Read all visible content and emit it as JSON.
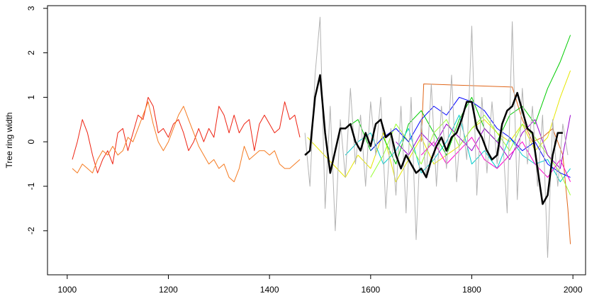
{
  "chart_data": {
    "type": "line",
    "y_label": "Tree ring width",
    "xlim": [
      961,
      2025
    ],
    "ylim": [
      -2.99,
      3.06
    ],
    "xticks": [
      1000,
      1200,
      1400,
      1600,
      1800,
      2000
    ],
    "yticks": [
      -2,
      -1,
      0,
      1,
      2,
      3
    ],
    "series": [
      {
        "color": "#ee2211",
        "width": 1,
        "x": [
          1010,
          1020,
          1030,
          1040,
          1050,
          1060,
          1070,
          1080,
          1090,
          1100,
          1110,
          1120,
          1130,
          1140,
          1150,
          1160,
          1170,
          1180,
          1190,
          1200,
          1210,
          1220,
          1230,
          1240,
          1250,
          1260,
          1270,
          1280,
          1290,
          1300,
          1310,
          1320,
          1330,
          1340,
          1350,
          1360,
          1370,
          1380,
          1390,
          1400,
          1410,
          1420,
          1430,
          1440,
          1450,
          1460
        ],
        "values": [
          -0.4,
          0,
          0.5,
          0.2,
          -0.3,
          -0.7,
          -0.4,
          -0.2,
          -0.5,
          0.2,
          0.3,
          -0.2,
          0.2,
          0.6,
          0.5,
          1.0,
          0.8,
          0.2,
          0.3,
          0.1,
          0.4,
          0.5,
          0.2,
          -0.2,
          0,
          0.3,
          0,
          0.3,
          0.1,
          0.8,
          0.6,
          0.2,
          0.6,
          0.2,
          0.4,
          0.5,
          -0.2,
          0.4,
          0.6,
          0.4,
          0.2,
          0.3,
          0.9,
          0.5,
          0.6,
          0.1
        ]
      },
      {
        "color": "#f57a20",
        "width": 1,
        "x": [
          1010,
          1020,
          1030,
          1040,
          1050,
          1060,
          1070,
          1080,
          1090,
          1100,
          1110,
          1120,
          1130,
          1140,
          1150,
          1160,
          1170,
          1180,
          1190,
          1200,
          1210,
          1220,
          1230,
          1240,
          1250,
          1260,
          1270,
          1280,
          1290,
          1300,
          1310,
          1320,
          1330,
          1340,
          1350,
          1360,
          1370,
          1380,
          1390,
          1400,
          1410,
          1420,
          1430,
          1440,
          1450,
          1460
        ],
        "values": [
          -0.6,
          -0.7,
          -0.5,
          -0.6,
          -0.7,
          -0.4,
          -0.2,
          -0.3,
          -0.1,
          -0.3,
          -0.2,
          0.1,
          0,
          0.3,
          0.6,
          0.9,
          0.4,
          0,
          -0.2,
          0,
          0.3,
          0.6,
          0.8,
          0.5,
          0.2,
          -0.1,
          -0.3,
          -0.5,
          -0.4,
          -0.6,
          -0.5,
          -0.8,
          -0.9,
          -0.6,
          -0.1,
          -0.4,
          -0.3,
          -0.2,
          -0.2,
          -0.3,
          -0.2,
          -0.5,
          -0.6,
          -0.6,
          -0.5,
          -0.4
        ]
      },
      {
        "color": "#e0661a",
        "width": 1,
        "x": [
          1700,
          1705,
          1880,
          1900,
          1920,
          1940,
          1960,
          1980,
          1990,
          1995
        ],
        "values": [
          0,
          1.3,
          1.23,
          0.5,
          0,
          0.1,
          0.3,
          -0.3,
          -1.5,
          -2.3
        ]
      },
      {
        "color": "#e6e600",
        "width": 1,
        "x": [
          1475,
          1500,
          1525,
          1550,
          1575,
          1600,
          1625,
          1650,
          1675,
          1700,
          1725,
          1750,
          1775,
          1800,
          1825,
          1850,
          1875,
          1900,
          1925,
          1950,
          1975,
          1995
        ],
        "values": [
          0.1,
          -0.2,
          -0.5,
          -0.8,
          -0.3,
          -0.6,
          0.2,
          -0.9,
          -0.4,
          0.1,
          -0.5,
          -0.3,
          -0.1,
          0.3,
          0.5,
          0.2,
          0,
          0.4,
          -0.2,
          0.1,
          1.0,
          1.6
        ]
      },
      {
        "color": "#00cc00",
        "width": 1,
        "x": [
          1550,
          1575,
          1600,
          1625,
          1650,
          1675,
          1700,
          1725,
          1750,
          1775,
          1800,
          1825,
          1850,
          1875,
          1900,
          1925,
          1950,
          1975,
          1995
        ],
        "values": [
          0.3,
          0.5,
          -0.2,
          0.1,
          -0.5,
          0.4,
          0.7,
          0.2,
          -0.3,
          0.5,
          1.0,
          0.3,
          0,
          0.6,
          0.8,
          0.4,
          1.2,
          1.8,
          2.4
        ]
      },
      {
        "color": "#00cccc",
        "width": 1,
        "x": [
          1550,
          1575,
          1600,
          1625,
          1650,
          1675,
          1700,
          1725,
          1750,
          1775,
          1800,
          1825,
          1850,
          1875,
          1900,
          1925,
          1950,
          1975,
          1995
        ],
        "values": [
          -0.3,
          0,
          0.2,
          -0.5,
          -0.2,
          0.3,
          -0.7,
          -0.4,
          0,
          0.6,
          -0.5,
          -0.2,
          -0.6,
          0.1,
          -0.3,
          -0.5,
          -0.4,
          -0.9,
          -0.6
        ]
      },
      {
        "color": "#99ff33",
        "width": 1,
        "x": [
          1600,
          1625,
          1650,
          1675,
          1700,
          1725,
          1750,
          1775,
          1800,
          1825,
          1850,
          1875,
          1900,
          1925,
          1950,
          1975,
          1995
        ],
        "values": [
          -0.8,
          -0.3,
          0.4,
          0,
          -0.5,
          0.2,
          0.5,
          -0.1,
          0.3,
          0.6,
          0.2,
          -0.2,
          0.4,
          0.1,
          -0.3,
          -0.7,
          -1.2
        ]
      },
      {
        "color": "#0000ff",
        "width": 1,
        "x": [
          1600,
          1625,
          1650,
          1675,
          1700,
          1725,
          1750,
          1775,
          1800,
          1825,
          1850,
          1875,
          1900,
          1925,
          1950,
          1975,
          1995
        ],
        "values": [
          -0.2,
          0.1,
          0.3,
          0,
          0.5,
          0.8,
          0.6,
          1.0,
          0.9,
          0.7,
          0.3,
          0.1,
          -0.2,
          0,
          -0.5,
          -0.7,
          -0.8
        ]
      },
      {
        "color": "#9900cc",
        "width": 1,
        "x": [
          1650,
          1675,
          1700,
          1725,
          1750,
          1775,
          1800,
          1825,
          1850,
          1875,
          1900,
          1925,
          1950,
          1975,
          1995
        ],
        "values": [
          0,
          -0.3,
          0.2,
          -0.1,
          0.4,
          0.1,
          -0.2,
          0.3,
          0,
          -0.4,
          0.2,
          0.5,
          -0.3,
          -0.6,
          0.6
        ]
      },
      {
        "color": "#ff00cc",
        "width": 1,
        "x": [
          1700,
          1725,
          1750,
          1775,
          1800,
          1825,
          1850,
          1875,
          1900,
          1925,
          1950,
          1975,
          1995
        ],
        "values": [
          -0.3,
          0,
          -0.5,
          -0.2,
          0.1,
          -0.4,
          -0.6,
          -0.3,
          0,
          -0.5,
          -0.8,
          -0.4,
          -0.9
        ]
      },
      {
        "color": "#b3b3b3",
        "width": 1,
        "x": [
          1470,
          1480,
          1490,
          1500,
          1510,
          1520,
          1530,
          1540,
          1550,
          1560,
          1570,
          1580,
          1590,
          1600,
          1610,
          1620,
          1630,
          1640,
          1650,
          1660,
          1670,
          1680,
          1690,
          1700,
          1710,
          1720,
          1730,
          1740,
          1750,
          1760,
          1770,
          1780,
          1790,
          1800,
          1810,
          1820,
          1830,
          1840,
          1850,
          1860,
          1870,
          1880,
          1890,
          1900,
          1910,
          1920,
          1930,
          1940,
          1950,
          1960,
          1970,
          1980,
          1990
        ],
        "values": [
          0.2,
          -1.0,
          1.5,
          2.8,
          -1.5,
          0.8,
          -2.0,
          0.5,
          -0.8,
          1.2,
          -0.5,
          0.6,
          -1.0,
          0.9,
          -0.3,
          1.0,
          -1.5,
          0.3,
          -1.2,
          0.8,
          -1.6,
          1.0,
          -2.2,
          0.5,
          -0.8,
          1.3,
          -1.0,
          0.8,
          -0.6,
          1.5,
          -0.9,
          0.6,
          -0.4,
          2.6,
          -1.2,
          1.0,
          -0.7,
          0.9,
          -0.5,
          0.3,
          -1.6,
          2.7,
          -1.3,
          1.2,
          -0.5,
          0.8,
          -1.0,
          0.6,
          -2.6,
          0.5,
          -1.0,
          0.4,
          -0.3
        ]
      },
      {
        "color": "#000000",
        "width": 2.5,
        "x": [
          1470,
          1480,
          1490,
          1500,
          1510,
          1520,
          1530,
          1540,
          1550,
          1560,
          1570,
          1580,
          1590,
          1600,
          1610,
          1620,
          1630,
          1640,
          1650,
          1660,
          1670,
          1680,
          1690,
          1700,
          1710,
          1720,
          1730,
          1740,
          1750,
          1760,
          1770,
          1780,
          1790,
          1800,
          1810,
          1820,
          1830,
          1840,
          1850,
          1860,
          1870,
          1880,
          1890,
          1900,
          1910,
          1920,
          1930,
          1940,
          1950,
          1960,
          1970,
          1980
        ],
        "values": [
          -0.3,
          -0.2,
          1.0,
          1.5,
          0.2,
          -0.7,
          -0.2,
          0.3,
          0.3,
          0.4,
          0,
          -0.2,
          0.2,
          -0.1,
          0.4,
          0.5,
          0.1,
          0.2,
          -0.3,
          -0.6,
          -0.3,
          -0.5,
          -0.7,
          -0.6,
          -0.8,
          -0.4,
          -0.1,
          0.1,
          -0.2,
          0.1,
          0.2,
          0.5,
          0.9,
          0.9,
          0.3,
          0.1,
          -0.2,
          -0.4,
          -0.3,
          0.4,
          0.7,
          0.8,
          1.1,
          0.7,
          0.3,
          0.2,
          -0.6,
          -1.4,
          -1.2,
          -0.3,
          0.2,
          0.2
        ]
      }
    ]
  }
}
